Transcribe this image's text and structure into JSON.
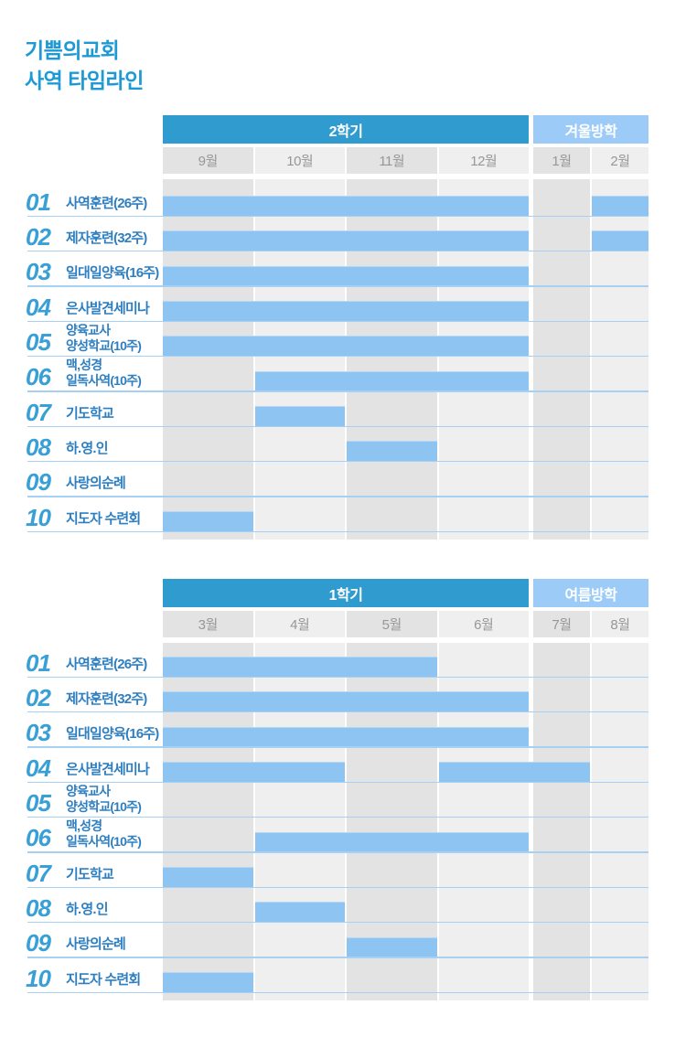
{
  "page_title": {
    "line1": "기쁨의교회",
    "line2": "사역 타임라인"
  },
  "colors": {
    "title_text": "#1d9ad5",
    "semester_band": "#2f9bcf",
    "vacation_band": "#9bcbf6",
    "bar_fill": "#8ec4f2",
    "column_dark": "#e3e3e3",
    "column_light": "#efefef",
    "month_text": "#979797",
    "row_underline": "#a6d1f4",
    "row_number_text": "#38a0d6",
    "row_label_text": "#2e7fc1",
    "band_text": "#ffffff"
  },
  "chart_data": [
    {
      "type": "gantt",
      "semester_label": "2학기",
      "vacation_label": "겨울방학",
      "months": [
        "9월",
        "10월",
        "11월",
        "12월",
        "1월",
        "2월"
      ],
      "rows": [
        {
          "num": "01",
          "label": [
            "사역훈련(26주)"
          ],
          "bars": [
            {
              "from": "9월",
              "to": "12월"
            },
            {
              "from": "2월",
              "to": "2월"
            }
          ]
        },
        {
          "num": "02",
          "label": [
            "제자훈련(32주)"
          ],
          "bars": [
            {
              "from": "9월",
              "to": "12월"
            },
            {
              "from": "2월",
              "to": "2월"
            }
          ]
        },
        {
          "num": "03",
          "label": [
            "일대일양육(16주)"
          ],
          "bars": [
            {
              "from": "9월",
              "to": "12월"
            }
          ]
        },
        {
          "num": "04",
          "label": [
            "은사발견세미나"
          ],
          "bars": [
            {
              "from": "9월",
              "to": "12월"
            }
          ]
        },
        {
          "num": "05",
          "label": [
            "양육교사",
            "양성학교(10주)"
          ],
          "bars": [
            {
              "from": "9월",
              "to": "12월"
            }
          ]
        },
        {
          "num": "06",
          "label": [
            "맥,성경",
            "일독사역(10주)"
          ],
          "bars": [
            {
              "from": "10월",
              "to": "12월"
            }
          ]
        },
        {
          "num": "07",
          "label": [
            "기도학교"
          ],
          "bars": [
            {
              "from": "10월",
              "to": "10월"
            }
          ]
        },
        {
          "num": "08",
          "label": [
            "하.영.인"
          ],
          "bars": [
            {
              "from": "11월",
              "to": "11월"
            }
          ]
        },
        {
          "num": "09",
          "label": [
            "사랑의순례"
          ],
          "bars": []
        },
        {
          "num": "10",
          "label": [
            "지도자 수련회"
          ],
          "bars": [
            {
              "from": "9월",
              "to": "9월"
            }
          ]
        }
      ]
    },
    {
      "type": "gantt",
      "semester_label": "1학기",
      "vacation_label": "여름방학",
      "months": [
        "3월",
        "4월",
        "5월",
        "6월",
        "7월",
        "8월"
      ],
      "rows": [
        {
          "num": "01",
          "label": [
            "사역훈련(26주)"
          ],
          "bars": [
            {
              "from": "3월",
              "to": "5월"
            }
          ]
        },
        {
          "num": "02",
          "label": [
            "제자훈련(32주)"
          ],
          "bars": [
            {
              "from": "3월",
              "to": "6월"
            }
          ]
        },
        {
          "num": "03",
          "label": [
            "일대일양육(16주)"
          ],
          "bars": [
            {
              "from": "3월",
              "to": "6월"
            }
          ]
        },
        {
          "num": "04",
          "label": [
            "은사발견세미나"
          ],
          "bars": [
            {
              "from": "3월",
              "to": "4월"
            },
            {
              "from": "6월",
              "to": "7월"
            }
          ]
        },
        {
          "num": "05",
          "label": [
            "양육교사",
            "양성학교(10주)"
          ],
          "bars": []
        },
        {
          "num": "06",
          "label": [
            "맥,성경",
            "일독사역(10주)"
          ],
          "bars": [
            {
              "from": "4월",
              "to": "6월"
            }
          ]
        },
        {
          "num": "07",
          "label": [
            "기도학교"
          ],
          "bars": [
            {
              "from": "3월",
              "to": "3월"
            }
          ]
        },
        {
          "num": "08",
          "label": [
            "하.영.인"
          ],
          "bars": [
            {
              "from": "4월",
              "to": "4월"
            }
          ]
        },
        {
          "num": "09",
          "label": [
            "사랑의순례"
          ],
          "bars": [
            {
              "from": "5월",
              "to": "5월"
            }
          ]
        },
        {
          "num": "10",
          "label": [
            "지도자 수련회"
          ],
          "bars": [
            {
              "from": "3월",
              "to": "3월"
            }
          ]
        }
      ]
    }
  ]
}
